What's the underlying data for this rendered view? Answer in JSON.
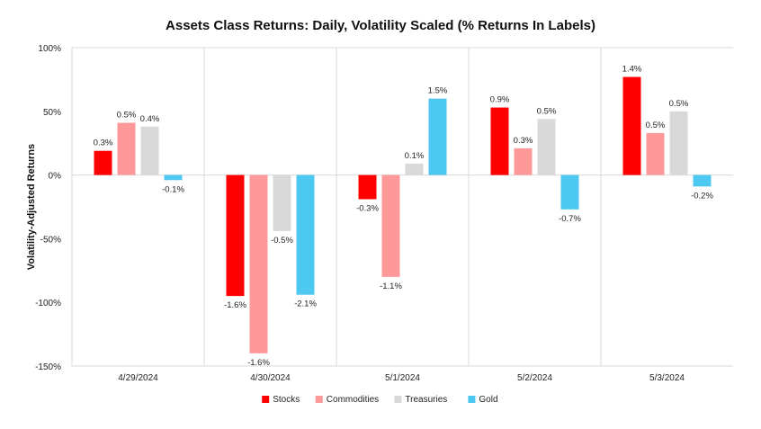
{
  "chart_data": {
    "type": "bar",
    "title": "Assets Class Returns: Daily, Volatility Scaled (% Returns In Labels)",
    "ylabel": "Volatility-Adjusted Returns",
    "xlabel": "",
    "ylim": [
      -150,
      100
    ],
    "yticks": [
      "100%",
      "50%",
      "0%",
      "-50%",
      "-100%",
      "-150%"
    ],
    "ytick_values": [
      100,
      50,
      0,
      -50,
      -100,
      -150
    ],
    "categories": [
      "4/29/2024",
      "4/30/2024",
      "5/1/2024",
      "5/2/2024",
      "5/3/2024"
    ],
    "series": [
      {
        "name": "Stocks",
        "color": "#ff0000",
        "values": [
          19,
          -95,
          -19,
          53,
          77
        ],
        "labels": [
          "0.3%",
          "-1.6%",
          "-0.3%",
          "0.9%",
          "1.4%"
        ]
      },
      {
        "name": "Commodities",
        "color": "#ff9999",
        "values": [
          41,
          -140,
          -80,
          21,
          33
        ],
        "labels": [
          "0.5%",
          "-1.6%",
          "-1.1%",
          "0.3%",
          "0.5%"
        ]
      },
      {
        "name": "Treasuries",
        "color": "#d9d9d9",
        "values": [
          38,
          -44,
          9,
          44,
          50
        ],
        "labels": [
          "0.4%",
          "-0.5%",
          "0.1%",
          "0.5%",
          "0.5%"
        ]
      },
      {
        "name": "Gold",
        "color": "#4dc8f0",
        "values": [
          -4,
          -94,
          60,
          -27,
          -9
        ],
        "labels": [
          "-0.1%",
          "-2.1%",
          "1.5%",
          "-0.7%",
          "-0.2%"
        ]
      }
    ],
    "grid": false,
    "category_separators": true,
    "legend": "bottom-center"
  }
}
